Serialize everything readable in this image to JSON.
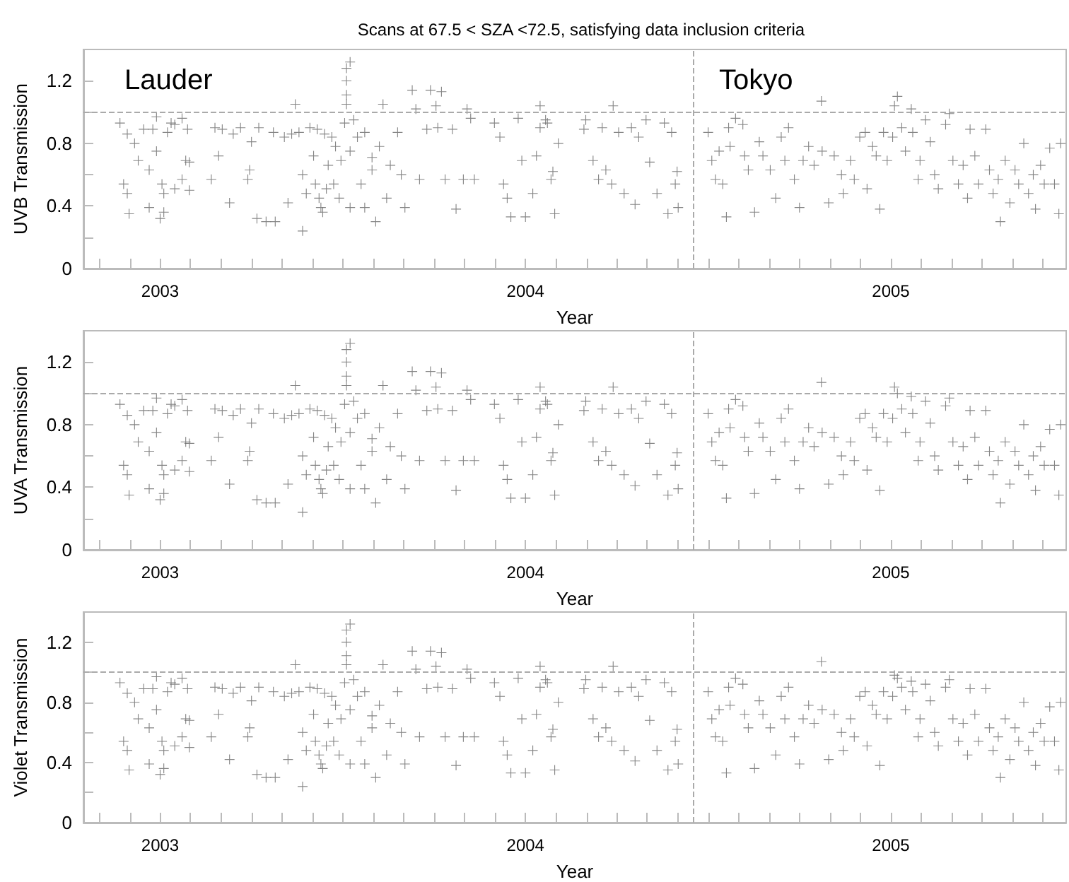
{
  "chart_data": [
    {
      "type": "scatter",
      "title": "Scans at 67.5 < SZA <72.5, satisfying data inclusion criteria",
      "xlabel": "Year",
      "ylabel": "UVB Transmission",
      "color": "#707070",
      "marker": "cross",
      "x": [
        2002.89,
        2002.91,
        2002.93,
        2002.9,
        2002.91,
        2002.915,
        2002.94,
        2002.955,
        2002.97,
        2002.98,
        2002.99,
        2002.97,
        2003.0,
        2003.01,
        2003.005,
        2002.99,
        2003.02,
        2003.03,
        2003.04,
        2003.06,
        2003.01,
        2003.04,
        2003.07,
        2003.075,
        2003.08,
        2003.06,
        2003.08,
        2003.15,
        2003.14,
        2003.16,
        2003.17,
        2003.19,
        2003.2,
        2003.22,
        2003.24,
        2003.245,
        2003.25,
        2003.27,
        2003.265,
        2003.29,
        2003.31,
        2003.315,
        2003.34,
        2003.35,
        2003.36,
        2003.37,
        2003.38,
        2003.39,
        2003.4,
        2003.41,
        2003.42,
        2003.425,
        2003.43,
        2003.435,
        2003.44,
        2003.445,
        2003.45,
        2003.455,
        2003.46,
        2003.47,
        2003.475,
        2003.48,
        2003.49,
        2003.495,
        2003.39,
        2003.505,
        2003.51,
        2003.51,
        2003.51,
        2003.51,
        2003.52,
        2003.52,
        2003.52,
        2003.53,
        2003.54,
        2003.55,
        2003.56,
        2003.56,
        2003.58,
        2003.58,
        2003.59,
        2003.6,
        2003.61,
        2003.62,
        2003.63,
        2003.65,
        2003.66,
        2003.67,
        2003.69,
        2003.7,
        2003.71,
        2003.73,
        2003.74,
        2003.755,
        2003.77,
        2003.78,
        2003.76,
        2003.8,
        2003.81,
        2003.83,
        2003.84,
        2003.85,
        2003.86,
        2003.915,
        2003.93,
        2003.94,
        2003.95,
        2003.96,
        2003.98,
        2003.99,
        2004.0,
        2004.02,
        2004.03,
        2004.04,
        2004.06,
        2004.07,
        2004.09,
        2004.04,
        2004.055,
        2004.075,
        2004.08,
        2004.16,
        2004.165,
        2004.185,
        2004.2,
        2004.21,
        2004.22,
        2004.236,
        2004.24,
        2004.255,
        2004.27,
        2004.29,
        2004.3,
        2004.31,
        2004.33,
        2004.34,
        2004.36,
        2004.38,
        2004.39,
        2004.4,
        2004.415,
        2004.418,
        2004.41,
        2004.5,
        2004.51,
        2004.52,
        2004.53,
        2004.54,
        2004.55,
        2004.556,
        2004.56,
        2004.575,
        2004.595,
        2004.6,
        2004.61,
        2004.627,
        2004.64,
        2004.65,
        2004.67,
        2004.685,
        2004.7,
        2004.71,
        2004.72,
        2004.736,
        2004.75,
        2004.76,
        2004.775,
        2004.79,
        2004.81,
        2004.812,
        2004.83,
        2004.845,
        2004.865,
        2004.87,
        2004.89,
        2004.9,
        2004.915,
        2004.93,
        2004.935,
        2004.95,
        2004.96,
        2004.97,
        2004.98,
        2004.99,
        2005.005,
        2005.01,
        2005.018,
        2005.03,
        2005.04,
        2005.056,
        2005.06,
        2005.075,
        2005.08,
        2005.095,
        2005.108,
        2005.12,
        2005.13,
        2005.15,
        2005.16,
        2005.17,
        2005.185,
        2005.198,
        2005.21,
        2005.217,
        2005.23,
        2005.24,
        2005.26,
        2005.27,
        2005.28,
        2005.294,
        2005.3,
        2005.313,
        2005.326,
        2005.34,
        2005.35,
        2005.364,
        2005.377,
        2005.39,
        2005.396,
        2005.41,
        2005.42,
        2005.435,
        2005.448,
        2005.46,
        2005.465
      ],
      "values": [
        0.93,
        0.86,
        0.8,
        0.54,
        0.48,
        0.35,
        0.69,
        0.89,
        0.63,
        0.89,
        0.97,
        0.39,
        0.32,
        0.36,
        0.54,
        0.75,
        0.87,
        0.93,
        0.92,
        0.57,
        0.48,
        0.51,
        0.69,
        0.89,
        0.68,
        0.96,
        0.5,
        0.9,
        0.57,
        0.72,
        0.89,
        0.42,
        0.86,
        0.9,
        0.57,
        0.63,
        0.81,
        0.9,
        0.32,
        0.3,
        0.87,
        0.3,
        0.84,
        0.42,
        0.86,
        1.05,
        0.87,
        0.6,
        0.48,
        0.9,
        0.72,
        0.54,
        0.89,
        0.45,
        0.39,
        0.36,
        0.86,
        0.51,
        0.66,
        0.84,
        0.54,
        0.78,
        0.45,
        0.69,
        0.24,
        0.93,
        1.05,
        1.11,
        1.2,
        1.28,
        1.32,
        0.75,
        0.39,
        0.95,
        0.84,
        0.54,
        0.87,
        0.39,
        0.63,
        0.71,
        0.3,
        0.78,
        1.05,
        0.45,
        0.66,
        0.87,
        0.6,
        0.39,
        1.14,
        1.02,
        0.57,
        0.89,
        1.14,
        1.04,
        1.13,
        0.57,
        0.9,
        0.89,
        0.38,
        0.57,
        1.02,
        0.96,
        0.57,
        0.93,
        0.84,
        0.54,
        0.45,
        0.33,
        0.96,
        0.69,
        0.33,
        0.48,
        0.72,
        1.04,
        0.93,
        0.57,
        0.8,
        0.9,
        0.95,
        0.62,
        0.35,
        0.89,
        0.95,
        0.69,
        0.57,
        0.9,
        0.63,
        0.54,
        1.04,
        0.87,
        0.48,
        0.9,
        0.41,
        0.84,
        0.95,
        0.68,
        0.48,
        0.93,
        0.35,
        0.87,
        0.62,
        0.39,
        0.54,
        0.87,
        0.69,
        0.57,
        0.75,
        0.54,
        0.33,
        0.9,
        0.78,
        0.96,
        0.92,
        0.72,
        0.63,
        0.36,
        0.81,
        0.72,
        0.63,
        0.45,
        0.84,
        0.69,
        0.9,
        0.57,
        0.39,
        0.69,
        0.78,
        0.66,
        1.07,
        0.75,
        0.42,
        0.72,
        0.6,
        0.48,
        0.69,
        0.57,
        0.84,
        0.87,
        0.51,
        0.78,
        0.72,
        0.38,
        0.87,
        0.69,
        0.84,
        1.04,
        1.1,
        0.9,
        0.75,
        1.02,
        0.87,
        0.57,
        0.69,
        0.95,
        0.81,
        0.6,
        0.51,
        0.92,
        0.99,
        0.69,
        0.54,
        0.66,
        0.45,
        0.89,
        0.72,
        0.54,
        0.89,
        0.63,
        0.48,
        0.57,
        0.3,
        0.69,
        0.42,
        0.63,
        0.54,
        0.8,
        0.48,
        0.6,
        0.38,
        0.66,
        0.54,
        0.77,
        0.54,
        0.35,
        0.8
      ],
      "xlim": [
        2002.79,
        2005.48
      ],
      "ylim": [
        0,
        1.4
      ],
      "xticks": [
        {
          "value": 2002.833,
          "label": null
        },
        {
          "value": 2002.917,
          "label": null
        },
        2003,
        {
          "value": 2003.083,
          "label": null
        },
        {
          "value": 2003.167,
          "label": null
        },
        {
          "value": 2003.25,
          "label": null
        },
        {
          "value": 2003.333,
          "label": null
        },
        {
          "value": 2003.417,
          "label": null
        },
        {
          "value": 2003.5,
          "label": null
        },
        {
          "value": 2003.583,
          "label": null
        },
        {
          "value": 2003.667,
          "label": null
        },
        {
          "value": 2003.75,
          "label": null
        },
        {
          "value": 2003.833,
          "label": null
        },
        {
          "value": 2003.917,
          "label": null
        },
        2004,
        {
          "value": 2004.083,
          "label": null
        },
        {
          "value": 2004.167,
          "label": null
        },
        {
          "value": 2004.25,
          "label": null
        },
        {
          "value": 2004.333,
          "label": null
        },
        {
          "value": 2004.417,
          "label": null
        },
        {
          "value": 2004.5,
          "label": null
        },
        {
          "value": 2004.583,
          "label": null
        },
        {
          "value": 2004.667,
          "label": null
        },
        {
          "value": 2004.75,
          "label": null
        },
        {
          "value": 2004.833,
          "label": null
        },
        {
          "value": 2004.917,
          "label": null
        },
        2005,
        {
          "value": 2005.083,
          "label": null
        },
        {
          "value": 2005.167,
          "label": null
        },
        {
          "value": 2005.25,
          "label": null
        },
        {
          "value": 2005.333,
          "label": null
        },
        {
          "value": 2005.417,
          "label": null
        }
      ],
      "yticks": [
        0,
        {
          "value": 0.2,
          "label": null
        },
        0.4,
        {
          "value": 0.6,
          "label": null
        },
        0.8,
        {
          "value": 1.0,
          "label": null
        },
        1.2
      ],
      "ref_lines": [
        {
          "axis": "y",
          "value": 1.0,
          "color": "#aaaaaa",
          "line_style": "dashed"
        },
        {
          "axis": "x",
          "value": 2004.46,
          "color": "#aaaaaa",
          "line_style": "dashed"
        }
      ],
      "annotations": [
        "Lauder",
        "Tokyo"
      ]
    },
    {
      "type": "scatter",
      "xlabel": "Year",
      "ylabel": "UVA Transmission",
      "color": "#707070",
      "marker": "cross",
      "x": [
        2002.89,
        2002.91,
        2002.93,
        2002.9,
        2002.91,
        2002.915,
        2002.94,
        2002.955,
        2002.97,
        2002.98,
        2002.99,
        2002.97,
        2003.0,
        2003.01,
        2003.005,
        2002.99,
        2003.02,
        2003.03,
        2003.04,
        2003.06,
        2003.01,
        2003.04,
        2003.07,
        2003.075,
        2003.08,
        2003.06,
        2003.08,
        2003.15,
        2003.14,
        2003.16,
        2003.17,
        2003.19,
        2003.2,
        2003.22,
        2003.24,
        2003.245,
        2003.25,
        2003.27,
        2003.265,
        2003.29,
        2003.31,
        2003.315,
        2003.34,
        2003.35,
        2003.36,
        2003.37,
        2003.38,
        2003.39,
        2003.4,
        2003.41,
        2003.42,
        2003.425,
        2003.43,
        2003.435,
        2003.44,
        2003.445,
        2003.45,
        2003.455,
        2003.46,
        2003.47,
        2003.475,
        2003.48,
        2003.49,
        2003.495,
        2003.39,
        2003.505,
        2003.51,
        2003.51,
        2003.51,
        2003.51,
        2003.52,
        2003.52,
        2003.52,
        2003.53,
        2003.54,
        2003.55,
        2003.56,
        2003.56,
        2003.58,
        2003.58,
        2003.59,
        2003.6,
        2003.61,
        2003.62,
        2003.63,
        2003.65,
        2003.66,
        2003.67,
        2003.69,
        2003.7,
        2003.71,
        2003.73,
        2003.74,
        2003.755,
        2003.77,
        2003.78,
        2003.76,
        2003.8,
        2003.81,
        2003.83,
        2003.84,
        2003.85,
        2003.86,
        2003.915,
        2003.93,
        2003.94,
        2003.95,
        2003.96,
        2003.98,
        2003.99,
        2004.0,
        2004.02,
        2004.03,
        2004.04,
        2004.06,
        2004.07,
        2004.09,
        2004.04,
        2004.055,
        2004.075,
        2004.08,
        2004.16,
        2004.165,
        2004.185,
        2004.2,
        2004.21,
        2004.22,
        2004.236,
        2004.24,
        2004.255,
        2004.27,
        2004.29,
        2004.3,
        2004.31,
        2004.33,
        2004.34,
        2004.36,
        2004.38,
        2004.39,
        2004.4,
        2004.415,
        2004.418,
        2004.41,
        2004.5,
        2004.51,
        2004.52,
        2004.53,
        2004.54,
        2004.55,
        2004.556,
        2004.56,
        2004.575,
        2004.595,
        2004.6,
        2004.61,
        2004.627,
        2004.64,
        2004.65,
        2004.67,
        2004.685,
        2004.7,
        2004.71,
        2004.72,
        2004.736,
        2004.75,
        2004.76,
        2004.775,
        2004.79,
        2004.81,
        2004.812,
        2004.83,
        2004.845,
        2004.865,
        2004.87,
        2004.89,
        2004.9,
        2004.915,
        2004.93,
        2004.935,
        2004.95,
        2004.96,
        2004.97,
        2004.98,
        2004.99,
        2005.005,
        2005.01,
        2005.018,
        2005.03,
        2005.04,
        2005.056,
        2005.06,
        2005.075,
        2005.08,
        2005.095,
        2005.108,
        2005.12,
        2005.13,
        2005.15,
        2005.16,
        2005.17,
        2005.185,
        2005.198,
        2005.21,
        2005.217,
        2005.23,
        2005.24,
        2005.26,
        2005.27,
        2005.28,
        2005.294,
        2005.3,
        2005.313,
        2005.326,
        2005.34,
        2005.35,
        2005.364,
        2005.377,
        2005.39,
        2005.396,
        2005.41,
        2005.42,
        2005.435,
        2005.448,
        2005.46,
        2005.465
      ],
      "values": [
        0.93,
        0.86,
        0.8,
        0.54,
        0.48,
        0.35,
        0.69,
        0.89,
        0.63,
        0.89,
        0.97,
        0.39,
        0.32,
        0.36,
        0.54,
        0.75,
        0.87,
        0.93,
        0.92,
        0.57,
        0.48,
        0.51,
        0.69,
        0.89,
        0.68,
        0.96,
        0.5,
        0.9,
        0.57,
        0.72,
        0.89,
        0.42,
        0.86,
        0.9,
        0.57,
        0.63,
        0.81,
        0.9,
        0.32,
        0.3,
        0.87,
        0.3,
        0.84,
        0.42,
        0.86,
        1.05,
        0.87,
        0.6,
        0.48,
        0.9,
        0.72,
        0.54,
        0.89,
        0.45,
        0.39,
        0.36,
        0.86,
        0.51,
        0.66,
        0.84,
        0.54,
        0.78,
        0.45,
        0.69,
        0.24,
        0.93,
        1.05,
        1.11,
        1.2,
        1.28,
        1.32,
        0.75,
        0.39,
        0.95,
        0.84,
        0.54,
        0.87,
        0.39,
        0.63,
        0.71,
        0.3,
        0.78,
        1.05,
        0.45,
        0.66,
        0.87,
        0.6,
        0.39,
        1.14,
        1.02,
        0.57,
        0.89,
        1.14,
        1.04,
        1.13,
        0.57,
        0.9,
        0.89,
        0.38,
        0.57,
        1.02,
        0.96,
        0.57,
        0.93,
        0.84,
        0.54,
        0.45,
        0.33,
        0.96,
        0.69,
        0.33,
        0.48,
        0.72,
        1.04,
        0.93,
        0.57,
        0.8,
        0.9,
        0.95,
        0.62,
        0.35,
        0.89,
        0.95,
        0.69,
        0.57,
        0.9,
        0.63,
        0.54,
        1.04,
        0.87,
        0.48,
        0.9,
        0.41,
        0.84,
        0.95,
        0.68,
        0.48,
        0.93,
        0.35,
        0.87,
        0.62,
        0.39,
        0.54,
        0.87,
        0.69,
        0.57,
        0.75,
        0.54,
        0.33,
        0.9,
        0.78,
        0.96,
        0.92,
        0.72,
        0.63,
        0.36,
        0.81,
        0.72,
        0.63,
        0.45,
        0.84,
        0.69,
        0.9,
        0.57,
        0.39,
        0.69,
        0.78,
        0.66,
        1.07,
        0.75,
        0.42,
        0.72,
        0.6,
        0.48,
        0.69,
        0.57,
        0.84,
        0.87,
        0.51,
        0.78,
        0.72,
        0.38,
        0.87,
        0.69,
        0.84,
        1.04,
        1.0,
        0.9,
        0.75,
        0.98,
        0.87,
        0.57,
        0.69,
        0.95,
        0.81,
        0.6,
        0.51,
        0.92,
        0.97,
        0.69,
        0.54,
        0.66,
        0.45,
        0.89,
        0.72,
        0.54,
        0.89,
        0.63,
        0.48,
        0.57,
        0.3,
        0.69,
        0.42,
        0.63,
        0.54,
        0.8,
        0.48,
        0.6,
        0.38,
        0.66,
        0.54,
        0.77,
        0.54,
        0.35,
        0.8
      ],
      "xlim": [
        2002.79,
        2005.48
      ],
      "ylim": [
        0,
        1.4
      ],
      "xticks": [
        {
          "value": 2002.833,
          "label": null
        },
        {
          "value": 2002.917,
          "label": null
        },
        2003,
        {
          "value": 2003.083,
          "label": null
        },
        {
          "value": 2003.167,
          "label": null
        },
        {
          "value": 2003.25,
          "label": null
        },
        {
          "value": 2003.333,
          "label": null
        },
        {
          "value": 2003.417,
          "label": null
        },
        {
          "value": 2003.5,
          "label": null
        },
        {
          "value": 2003.583,
          "label": null
        },
        {
          "value": 2003.667,
          "label": null
        },
        {
          "value": 2003.75,
          "label": null
        },
        {
          "value": 2003.833,
          "label": null
        },
        {
          "value": 2003.917,
          "label": null
        },
        2004,
        {
          "value": 2004.083,
          "label": null
        },
        {
          "value": 2004.167,
          "label": null
        },
        {
          "value": 2004.25,
          "label": null
        },
        {
          "value": 2004.333,
          "label": null
        },
        {
          "value": 2004.417,
          "label": null
        },
        {
          "value": 2004.5,
          "label": null
        },
        {
          "value": 2004.583,
          "label": null
        },
        {
          "value": 2004.667,
          "label": null
        },
        {
          "value": 2004.75,
          "label": null
        },
        {
          "value": 2004.833,
          "label": null
        },
        {
          "value": 2004.917,
          "label": null
        },
        2005,
        {
          "value": 2005.083,
          "label": null
        },
        {
          "value": 2005.167,
          "label": null
        },
        {
          "value": 2005.25,
          "label": null
        },
        {
          "value": 2005.333,
          "label": null
        },
        {
          "value": 2005.417,
          "label": null
        }
      ],
      "yticks": [
        0,
        {
          "value": 0.2,
          "label": null
        },
        0.4,
        {
          "value": 0.6,
          "label": null
        },
        0.8,
        {
          "value": 1.0,
          "label": null
        },
        1.2
      ],
      "ref_lines": [
        {
          "axis": "y",
          "value": 1.0,
          "color": "#aaaaaa",
          "line_style": "dashed"
        },
        {
          "axis": "x",
          "value": 2004.46,
          "color": "#aaaaaa",
          "line_style": "dashed"
        }
      ]
    },
    {
      "type": "scatter",
      "xlabel": "Year",
      "ylabel": "Violet Transmission",
      "color": "#707070",
      "marker": "cross",
      "x": [
        2002.89,
        2002.91,
        2002.93,
        2002.9,
        2002.91,
        2002.915,
        2002.94,
        2002.955,
        2002.97,
        2002.98,
        2002.99,
        2002.97,
        2003.0,
        2003.01,
        2003.005,
        2002.99,
        2003.02,
        2003.03,
        2003.04,
        2003.06,
        2003.01,
        2003.04,
        2003.07,
        2003.075,
        2003.08,
        2003.06,
        2003.08,
        2003.15,
        2003.14,
        2003.16,
        2003.17,
        2003.19,
        2003.2,
        2003.22,
        2003.24,
        2003.245,
        2003.25,
        2003.27,
        2003.265,
        2003.29,
        2003.31,
        2003.315,
        2003.34,
        2003.35,
        2003.36,
        2003.37,
        2003.38,
        2003.39,
        2003.4,
        2003.41,
        2003.42,
        2003.425,
        2003.43,
        2003.435,
        2003.44,
        2003.445,
        2003.45,
        2003.455,
        2003.46,
        2003.47,
        2003.475,
        2003.48,
        2003.49,
        2003.495,
        2003.39,
        2003.505,
        2003.51,
        2003.51,
        2003.51,
        2003.51,
        2003.52,
        2003.52,
        2003.52,
        2003.53,
        2003.54,
        2003.55,
        2003.56,
        2003.56,
        2003.58,
        2003.58,
        2003.59,
        2003.6,
        2003.61,
        2003.62,
        2003.63,
        2003.65,
        2003.66,
        2003.67,
        2003.69,
        2003.7,
        2003.71,
        2003.73,
        2003.74,
        2003.755,
        2003.77,
        2003.78,
        2003.76,
        2003.8,
        2003.81,
        2003.83,
        2003.84,
        2003.85,
        2003.86,
        2003.915,
        2003.93,
        2003.94,
        2003.95,
        2003.96,
        2003.98,
        2003.99,
        2004.0,
        2004.02,
        2004.03,
        2004.04,
        2004.06,
        2004.07,
        2004.09,
        2004.04,
        2004.055,
        2004.075,
        2004.08,
        2004.16,
        2004.165,
        2004.185,
        2004.2,
        2004.21,
        2004.22,
        2004.236,
        2004.24,
        2004.255,
        2004.27,
        2004.29,
        2004.3,
        2004.31,
        2004.33,
        2004.34,
        2004.36,
        2004.38,
        2004.39,
        2004.4,
        2004.415,
        2004.418,
        2004.41,
        2004.5,
        2004.51,
        2004.52,
        2004.53,
        2004.54,
        2004.55,
        2004.556,
        2004.56,
        2004.575,
        2004.595,
        2004.6,
        2004.61,
        2004.627,
        2004.64,
        2004.65,
        2004.67,
        2004.685,
        2004.7,
        2004.71,
        2004.72,
        2004.736,
        2004.75,
        2004.76,
        2004.775,
        2004.79,
        2004.81,
        2004.812,
        2004.83,
        2004.845,
        2004.865,
        2004.87,
        2004.89,
        2004.9,
        2004.915,
        2004.93,
        2004.935,
        2004.95,
        2004.96,
        2004.97,
        2004.98,
        2004.99,
        2005.005,
        2005.01,
        2005.018,
        2005.03,
        2005.04,
        2005.056,
        2005.06,
        2005.075,
        2005.08,
        2005.095,
        2005.108,
        2005.12,
        2005.13,
        2005.15,
        2005.16,
        2005.17,
        2005.185,
        2005.198,
        2005.21,
        2005.217,
        2005.23,
        2005.24,
        2005.26,
        2005.27,
        2005.28,
        2005.294,
        2005.3,
        2005.313,
        2005.326,
        2005.34,
        2005.35,
        2005.364,
        2005.377,
        2005.39,
        2005.396,
        2005.41,
        2005.42,
        2005.435,
        2005.448,
        2005.46,
        2005.465
      ],
      "values": [
        0.93,
        0.86,
        0.8,
        0.54,
        0.48,
        0.35,
        0.69,
        0.89,
        0.63,
        0.89,
        0.97,
        0.39,
        0.32,
        0.36,
        0.54,
        0.75,
        0.87,
        0.93,
        0.92,
        0.57,
        0.48,
        0.51,
        0.69,
        0.89,
        0.68,
        0.96,
        0.5,
        0.9,
        0.57,
        0.72,
        0.89,
        0.42,
        0.86,
        0.9,
        0.57,
        0.63,
        0.81,
        0.9,
        0.32,
        0.3,
        0.87,
        0.3,
        0.84,
        0.42,
        0.86,
        1.05,
        0.87,
        0.6,
        0.48,
        0.9,
        0.72,
        0.54,
        0.89,
        0.45,
        0.39,
        0.36,
        0.86,
        0.51,
        0.66,
        0.84,
        0.54,
        0.78,
        0.45,
        0.69,
        0.24,
        0.93,
        1.05,
        1.11,
        1.2,
        1.28,
        1.32,
        0.75,
        0.39,
        0.95,
        0.84,
        0.54,
        0.87,
        0.39,
        0.63,
        0.71,
        0.3,
        0.78,
        1.05,
        0.45,
        0.66,
        0.87,
        0.6,
        0.39,
        1.14,
        1.02,
        0.57,
        0.89,
        1.14,
        1.04,
        1.13,
        0.57,
        0.9,
        0.89,
        0.38,
        0.57,
        1.02,
        0.96,
        0.57,
        0.93,
        0.84,
        0.54,
        0.45,
        0.33,
        0.96,
        0.69,
        0.33,
        0.48,
        0.72,
        1.04,
        0.93,
        0.57,
        0.8,
        0.9,
        0.95,
        0.62,
        0.35,
        0.89,
        0.95,
        0.69,
        0.57,
        0.9,
        0.63,
        0.54,
        1.04,
        0.87,
        0.48,
        0.9,
        0.41,
        0.84,
        0.95,
        0.68,
        0.48,
        0.93,
        0.35,
        0.87,
        0.62,
        0.39,
        0.54,
        0.87,
        0.69,
        0.57,
        0.75,
        0.54,
        0.33,
        0.9,
        0.78,
        0.96,
        0.92,
        0.72,
        0.63,
        0.36,
        0.81,
        0.72,
        0.63,
        0.45,
        0.84,
        0.69,
        0.9,
        0.57,
        0.39,
        0.69,
        0.78,
        0.66,
        1.07,
        0.75,
        0.42,
        0.72,
        0.6,
        0.48,
        0.69,
        0.57,
        0.84,
        0.87,
        0.51,
        0.78,
        0.72,
        0.38,
        0.87,
        0.69,
        0.84,
        0.98,
        0.96,
        0.9,
        0.75,
        0.94,
        0.87,
        0.57,
        0.69,
        0.92,
        0.81,
        0.6,
        0.51,
        0.9,
        0.95,
        0.69,
        0.54,
        0.66,
        0.45,
        0.89,
        0.72,
        0.54,
        0.89,
        0.63,
        0.48,
        0.57,
        0.3,
        0.69,
        0.42,
        0.63,
        0.54,
        0.8,
        0.48,
        0.6,
        0.38,
        0.66,
        0.54,
        0.77,
        0.54,
        0.35,
        0.8
      ],
      "xlim": [
        2002.79,
        2005.48
      ],
      "ylim": [
        0,
        1.4
      ],
      "xticks": [
        {
          "value": 2002.833,
          "label": null
        },
        {
          "value": 2002.917,
          "label": null
        },
        2003,
        {
          "value": 2003.083,
          "label": null
        },
        {
          "value": 2003.167,
          "label": null
        },
        {
          "value": 2003.25,
          "label": null
        },
        {
          "value": 2003.333,
          "label": null
        },
        {
          "value": 2003.417,
          "label": null
        },
        {
          "value": 2003.5,
          "label": null
        },
        {
          "value": 2003.583,
          "label": null
        },
        {
          "value": 2003.667,
          "label": null
        },
        {
          "value": 2003.75,
          "label": null
        },
        {
          "value": 2003.833,
          "label": null
        },
        {
          "value": 2003.917,
          "label": null
        },
        2004,
        {
          "value": 2004.083,
          "label": null
        },
        {
          "value": 2004.167,
          "label": null
        },
        {
          "value": 2004.25,
          "label": null
        },
        {
          "value": 2004.333,
          "label": null
        },
        {
          "value": 2004.417,
          "label": null
        },
        {
          "value": 2004.5,
          "label": null
        },
        {
          "value": 2004.583,
          "label": null
        },
        {
          "value": 2004.667,
          "label": null
        },
        {
          "value": 2004.75,
          "label": null
        },
        {
          "value": 2004.833,
          "label": null
        },
        {
          "value": 2004.917,
          "label": null
        },
        2005,
        {
          "value": 2005.083,
          "label": null
        },
        {
          "value": 2005.167,
          "label": null
        },
        {
          "value": 2005.25,
          "label": null
        },
        {
          "value": 2005.333,
          "label": null
        },
        {
          "value": 2005.417,
          "label": null
        }
      ],
      "yticks": [
        0,
        {
          "value": 0.2,
          "label": null
        },
        0.4,
        {
          "value": 0.6,
          "label": null
        },
        0.8,
        {
          "value": 1.0,
          "label": null
        },
        1.2
      ],
      "ref_lines": [
        {
          "axis": "y",
          "value": 1.0,
          "color": "#aaaaaa",
          "line_style": "dashed"
        },
        {
          "axis": "x",
          "value": 2004.46,
          "color": "#aaaaaa",
          "line_style": "dashed"
        }
      ]
    }
  ]
}
